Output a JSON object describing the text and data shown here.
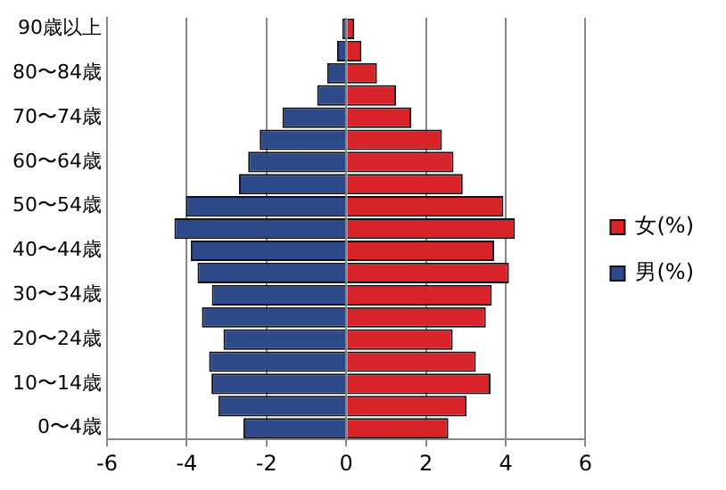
{
  "chart_data": {
    "type": "bar",
    "orientation": "horizontal",
    "stacked": true,
    "categories": [
      "90歳以上",
      null,
      "80〜84歳",
      null,
      "70〜74歳",
      null,
      "60〜64歳",
      null,
      "50〜54歳",
      null,
      "40〜44歳",
      null,
      "30〜34歳",
      null,
      "20〜24歳",
      null,
      "10〜14歳",
      null,
      "0〜4歳"
    ],
    "series": [
      {
        "name": "女(%)",
        "color": "#d8232a",
        "values": [
          0.2,
          0.38,
          0.77,
          1.25,
          1.63,
          2.4,
          2.69,
          2.92,
          3.94,
          4.23,
          3.71,
          4.08,
          3.65,
          3.5,
          2.67,
          3.25,
          3.62,
          3.02,
          2.56
        ]
      },
      {
        "name": "男(%)",
        "color": "#2e4a8a",
        "values": [
          -0.1,
          -0.23,
          -0.48,
          -0.73,
          -1.6,
          -2.17,
          -2.46,
          -2.69,
          -4.02,
          -4.31,
          -3.9,
          -3.73,
          -3.37,
          -3.62,
          -3.08,
          -3.44,
          -3.38,
          -3.21,
          -2.58
        ]
      }
    ],
    "xlim": [
      -6,
      6
    ],
    "xticks": [
      -6,
      -4,
      -2,
      0,
      2,
      4,
      6
    ],
    "grid": "x",
    "legend": "right"
  }
}
